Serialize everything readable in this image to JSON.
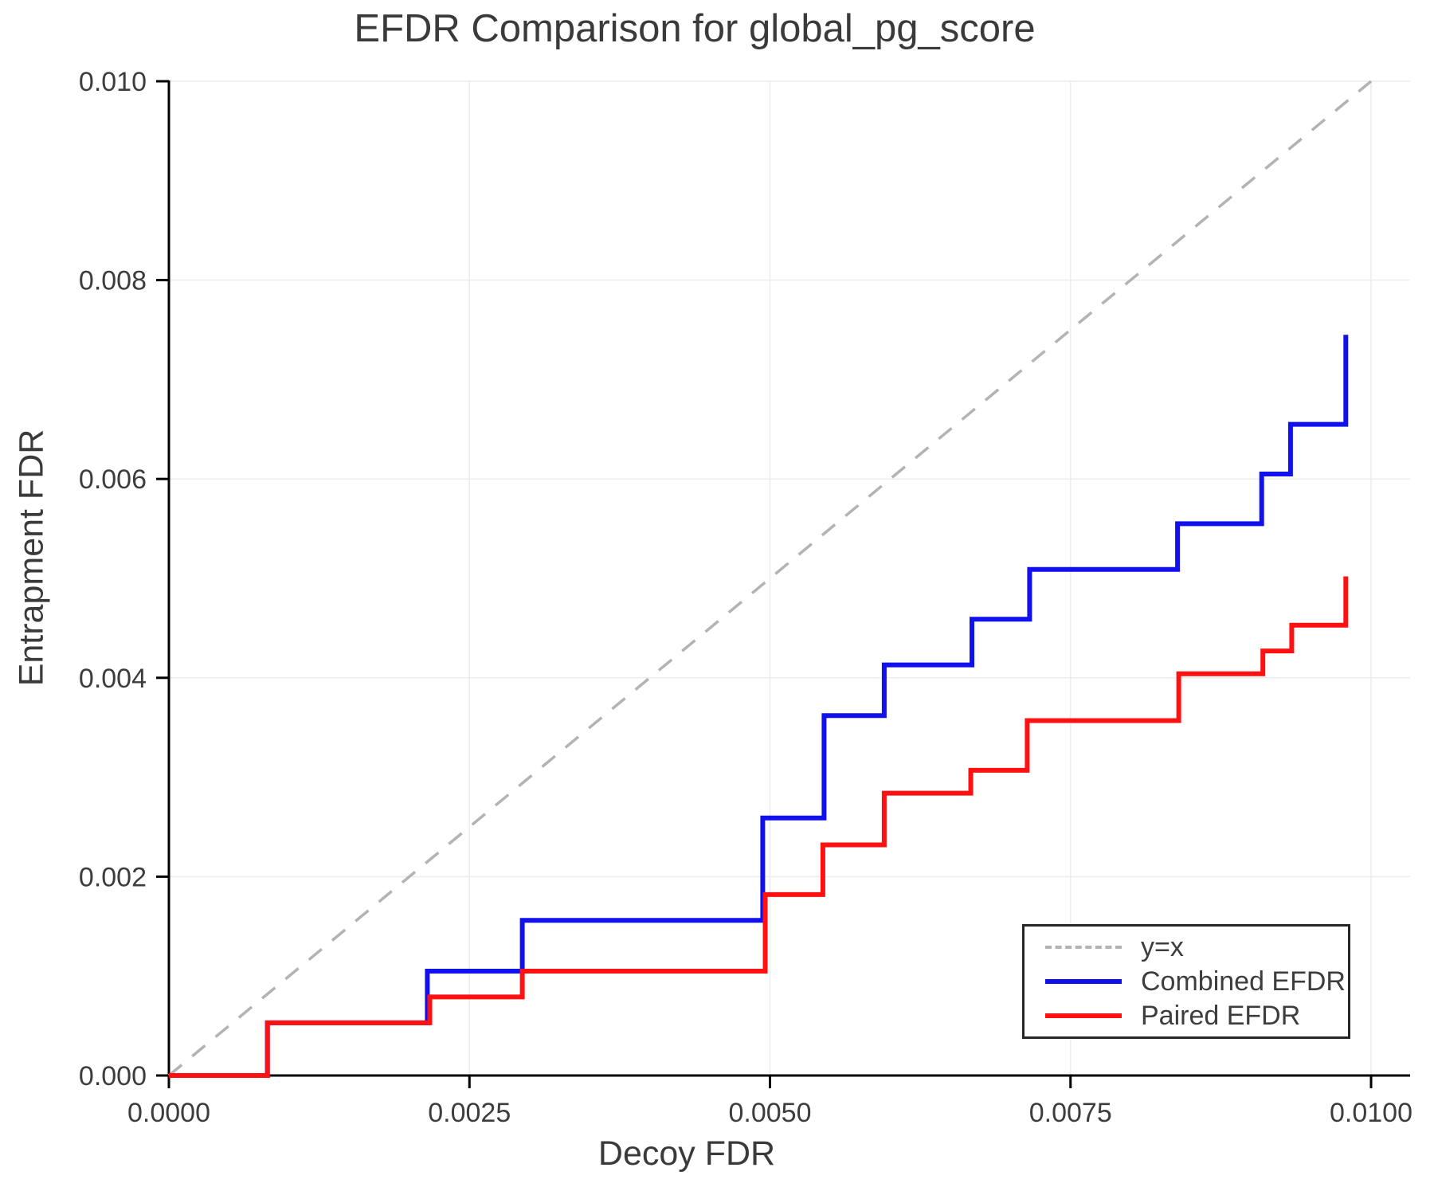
{
  "chart_data": {
    "type": "line",
    "title": "EFDR Comparison for global_pg_score",
    "xlabel": "Decoy FDR",
    "ylabel": "Entrapment FDR",
    "xlim": [
      0.0,
      0.01
    ],
    "ylim": [
      0.0,
      0.01
    ],
    "grid": true,
    "grid_color": "#ececec",
    "background": "#ffffff",
    "spine_color": "#000000",
    "tick_label_color": "#3d3d3d",
    "legend_position": "lower right",
    "x_ticks": {
      "values": [
        0.0,
        0.0025,
        0.005,
        0.0075,
        0.01
      ],
      "labels": [
        "0.0000",
        "0.0025",
        "0.0050",
        "0.0075",
        "0.0100"
      ]
    },
    "y_ticks": {
      "values": [
        0.0,
        0.002,
        0.004,
        0.006,
        0.008,
        0.01
      ],
      "labels": [
        "0.000",
        "0.002",
        "0.004",
        "0.006",
        "0.008",
        "0.010"
      ]
    },
    "series": [
      {
        "name": "y=x",
        "style": "dashed",
        "color": "#b3b3b3",
        "width": 3.5,
        "points": [
          [
            0.0,
            0.0
          ],
          [
            0.01,
            0.01
          ]
        ]
      },
      {
        "name": "Combined EFDR",
        "style": "solid",
        "color": "#1111ee",
        "width": 6,
        "points": [
          [
            0.0,
            0.0
          ],
          [
            0.00082,
            0.0
          ],
          [
            0.00082,
            0.00053
          ],
          [
            0.00215,
            0.00053
          ],
          [
            0.00215,
            0.00105
          ],
          [
            0.00294,
            0.00105
          ],
          [
            0.00294,
            0.00156
          ],
          [
            0.00494,
            0.00156
          ],
          [
            0.00494,
            0.00259
          ],
          [
            0.00545,
            0.00259
          ],
          [
            0.00545,
            0.00362
          ],
          [
            0.00595,
            0.00362
          ],
          [
            0.00595,
            0.00413
          ],
          [
            0.00668,
            0.00413
          ],
          [
            0.00668,
            0.00459
          ],
          [
            0.00716,
            0.00459
          ],
          [
            0.00716,
            0.00509
          ],
          [
            0.00839,
            0.00509
          ],
          [
            0.00839,
            0.00555
          ],
          [
            0.00909,
            0.00555
          ],
          [
            0.00909,
            0.00605
          ],
          [
            0.00933,
            0.00605
          ],
          [
            0.00933,
            0.00655
          ],
          [
            0.00979,
            0.00655
          ],
          [
            0.00979,
            0.00745
          ]
        ]
      },
      {
        "name": "Paired EFDR",
        "style": "solid",
        "color": "#ff1111",
        "width": 6,
        "points": [
          [
            0.0,
            0.0
          ],
          [
            0.00082,
            0.0
          ],
          [
            0.00082,
            0.00053
          ],
          [
            0.00217,
            0.00053
          ],
          [
            0.00217,
            0.00079
          ],
          [
            0.00294,
            0.00079
          ],
          [
            0.00294,
            0.00105
          ],
          [
            0.00496,
            0.00105
          ],
          [
            0.00496,
            0.00182
          ],
          [
            0.00544,
            0.00182
          ],
          [
            0.00544,
            0.00232
          ],
          [
            0.00595,
            0.00232
          ],
          [
            0.00595,
            0.00284
          ],
          [
            0.00667,
            0.00284
          ],
          [
            0.00667,
            0.00307
          ],
          [
            0.00714,
            0.00307
          ],
          [
            0.00714,
            0.00357
          ],
          [
            0.0084,
            0.00357
          ],
          [
            0.0084,
            0.00404
          ],
          [
            0.0091,
            0.00404
          ],
          [
            0.0091,
            0.00427
          ],
          [
            0.00934,
            0.00427
          ],
          [
            0.00934,
            0.00453
          ],
          [
            0.00979,
            0.00453
          ],
          [
            0.00979,
            0.00502
          ]
        ]
      }
    ]
  }
}
